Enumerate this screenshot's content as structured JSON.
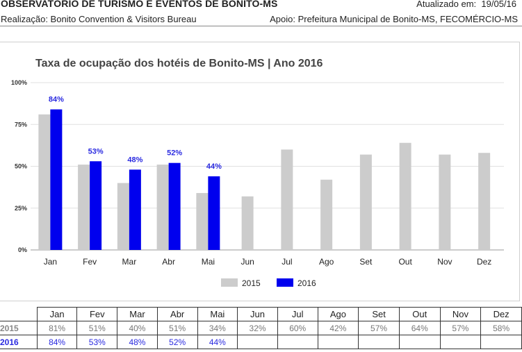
{
  "header": {
    "title": "OBSERVATÓRIO DE TURISMO E EVENTOS DE BONITO-MS",
    "updated_label": "Atualizado em:",
    "updated_date": "19/05/16",
    "realization": "Realização: Bonito Convention & Visitors Bureau",
    "support": "Apoio: Prefeitura Municipal de Bonito-MS, FECOMÉRCIO-MS"
  },
  "colors": {
    "series_2015": "#cccccc",
    "series_2016": "#0000ee",
    "label_2016": "#2a2ae0",
    "gridline": "#e0e0e0"
  },
  "chart_data": {
    "type": "bar",
    "title": "Taxa de ocupação dos hotéis de Bonito-MS | Ano 2016",
    "categories": [
      "Jan",
      "Fev",
      "Mar",
      "Abr",
      "Mai",
      "Jun",
      "Jul",
      "Ago",
      "Set",
      "Out",
      "Nov",
      "Dez"
    ],
    "series": [
      {
        "name": "2015",
        "values": [
          81,
          51,
          40,
          51,
          34,
          32,
          60,
          42,
          57,
          64,
          57,
          58
        ]
      },
      {
        "name": "2016",
        "values": [
          84,
          53,
          48,
          52,
          44,
          null,
          null,
          null,
          null,
          null,
          null,
          null
        ]
      }
    ],
    "data_labels_series": "2016",
    "yticks": [
      "0%",
      "25%",
      "50%",
      "75%",
      "100%"
    ],
    "ylim": [
      0,
      100
    ],
    "grid": true,
    "legend_position": "bottom"
  },
  "table": {
    "headers": [
      "Jan",
      "Fev",
      "Mar",
      "Abr",
      "Mai",
      "Jun",
      "Jul",
      "Ago",
      "Set",
      "Out",
      "Nov",
      "Dez"
    ],
    "rows": [
      {
        "label": "2015",
        "cells": [
          "81%",
          "51%",
          "40%",
          "51%",
          "34%",
          "32%",
          "60%",
          "42%",
          "57%",
          "64%",
          "57%",
          "58%"
        ]
      },
      {
        "label": "2016",
        "cells": [
          "84%",
          "53%",
          "48%",
          "52%",
          "44%",
          "",
          "",
          "",
          "",
          "",
          "",
          ""
        ]
      }
    ]
  }
}
